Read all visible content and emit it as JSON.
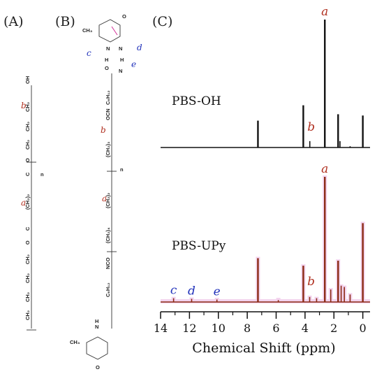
{
  "panels": {
    "a": "(A)",
    "b": "(B)",
    "c": "(C)"
  },
  "structure_a": {
    "oh": "OH",
    "chain_top": [
      "CH₂",
      "CH₂",
      "CH₂"
    ],
    "o_ester": "O",
    "c_carbonyl": "C",
    "ch2_2": "(CH₂)₂",
    "n": "n",
    "chain_bottom": [
      "CH₂",
      "CH₂",
      "CH₂",
      "CH₂"
    ],
    "label_a": "a",
    "label_b": "b"
  },
  "structure_b": {
    "ch3": "CH₃",
    "o": "O",
    "n": "N",
    "h": "H",
    "c": "C",
    "c6h12": "C₆H₁₂",
    "ocn": "OCN",
    "ch2_3": "(CH₂)₃",
    "ch2_2": "(CH₂)₂",
    "ch2_4": "(CH₂)₄",
    "nco": "NCO",
    "n_sub": "n",
    "label_a": "a",
    "label_b": "b",
    "label_c": "c",
    "label_d": "d",
    "label_e": "e"
  },
  "chart_data": {
    "type": "line",
    "xlabel": "Chemical Shift (ppm)",
    "xlim": [
      14,
      -0.5
    ],
    "x_ticks": [
      14,
      12,
      10,
      8,
      6,
      4,
      2,
      0
    ],
    "series": [
      {
        "name": "PBS-OH",
        "color": "#111111",
        "peaks": [
          {
            "ppm": 7.26,
            "height": 0.21
          },
          {
            "ppm": 4.12,
            "height": 0.33
          },
          {
            "ppm": 3.67,
            "height": 0.05,
            "label": "b"
          },
          {
            "ppm": 2.63,
            "height": 1.0,
            "label": "a"
          },
          {
            "ppm": 1.71,
            "height": 0.26
          },
          {
            "ppm": 1.58,
            "height": 0.05
          },
          {
            "ppm": 0.88,
            "height": 0.01
          },
          {
            "ppm": 0.0,
            "height": 0.25
          }
        ]
      },
      {
        "name": "PBS-UPy",
        "color": "#8b2a14",
        "highlight": "#f3d3ee",
        "peaks": [
          {
            "ppm": 13.1,
            "height": 0.03,
            "label": "c"
          },
          {
            "ppm": 11.85,
            "height": 0.025,
            "label": "d"
          },
          {
            "ppm": 10.1,
            "height": 0.02,
            "label": "e"
          },
          {
            "ppm": 7.26,
            "height": 0.35
          },
          {
            "ppm": 5.85,
            "height": 0.015
          },
          {
            "ppm": 4.12,
            "height": 0.29
          },
          {
            "ppm": 3.68,
            "height": 0.04,
            "label": "b"
          },
          {
            "ppm": 3.2,
            "height": 0.03
          },
          {
            "ppm": 2.63,
            "height": 1.0,
            "label": "a"
          },
          {
            "ppm": 2.22,
            "height": 0.1
          },
          {
            "ppm": 1.71,
            "height": 0.33
          },
          {
            "ppm": 1.5,
            "height": 0.13
          },
          {
            "ppm": 1.28,
            "height": 0.12
          },
          {
            "ppm": 0.88,
            "height": 0.06
          },
          {
            "ppm": 0.0,
            "height": 0.63
          }
        ]
      }
    ]
  }
}
